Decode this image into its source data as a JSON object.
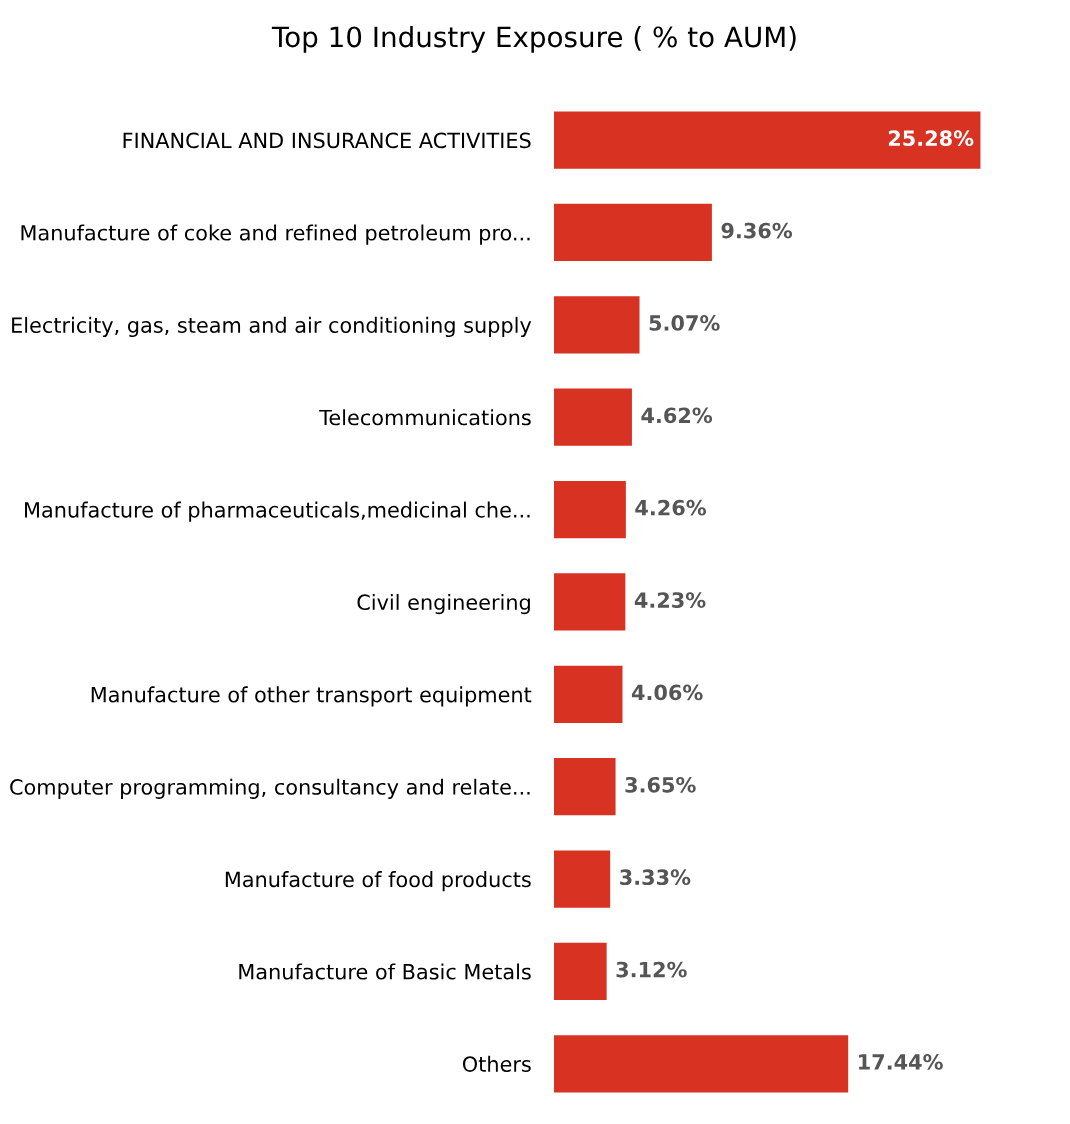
{
  "chart_data": {
    "type": "bar",
    "orientation": "horizontal",
    "title": "Top 10 Industry Exposure ( % to AUM)",
    "categories": [
      "FINANCIAL AND INSURANCE ACTIVITIES",
      "Manufacture of coke and refined petroleum pro...",
      "Electricity, gas, steam and air conditioning supply",
      "Telecommunications",
      "Manufacture of pharmaceuticals,medicinal che...",
      "Civil engineering",
      "Manufacture of other transport equipment",
      "Computer programming, consultancy and relate...",
      "Manufacture of food products",
      "Manufacture of Basic Metals",
      "Others"
    ],
    "values": [
      25.28,
      9.36,
      5.07,
      4.62,
      4.26,
      4.23,
      4.06,
      3.65,
      3.33,
      3.12,
      17.44
    ],
    "value_labels": [
      "25.28%",
      "9.36%",
      "5.07%",
      "4.62%",
      "4.26%",
      "4.23%",
      "4.06%",
      "3.65%",
      "3.33%",
      "3.12%",
      "17.44%"
    ],
    "color": "#d73222",
    "tick_labels": "y",
    "grid": false,
    "legend": false
  }
}
